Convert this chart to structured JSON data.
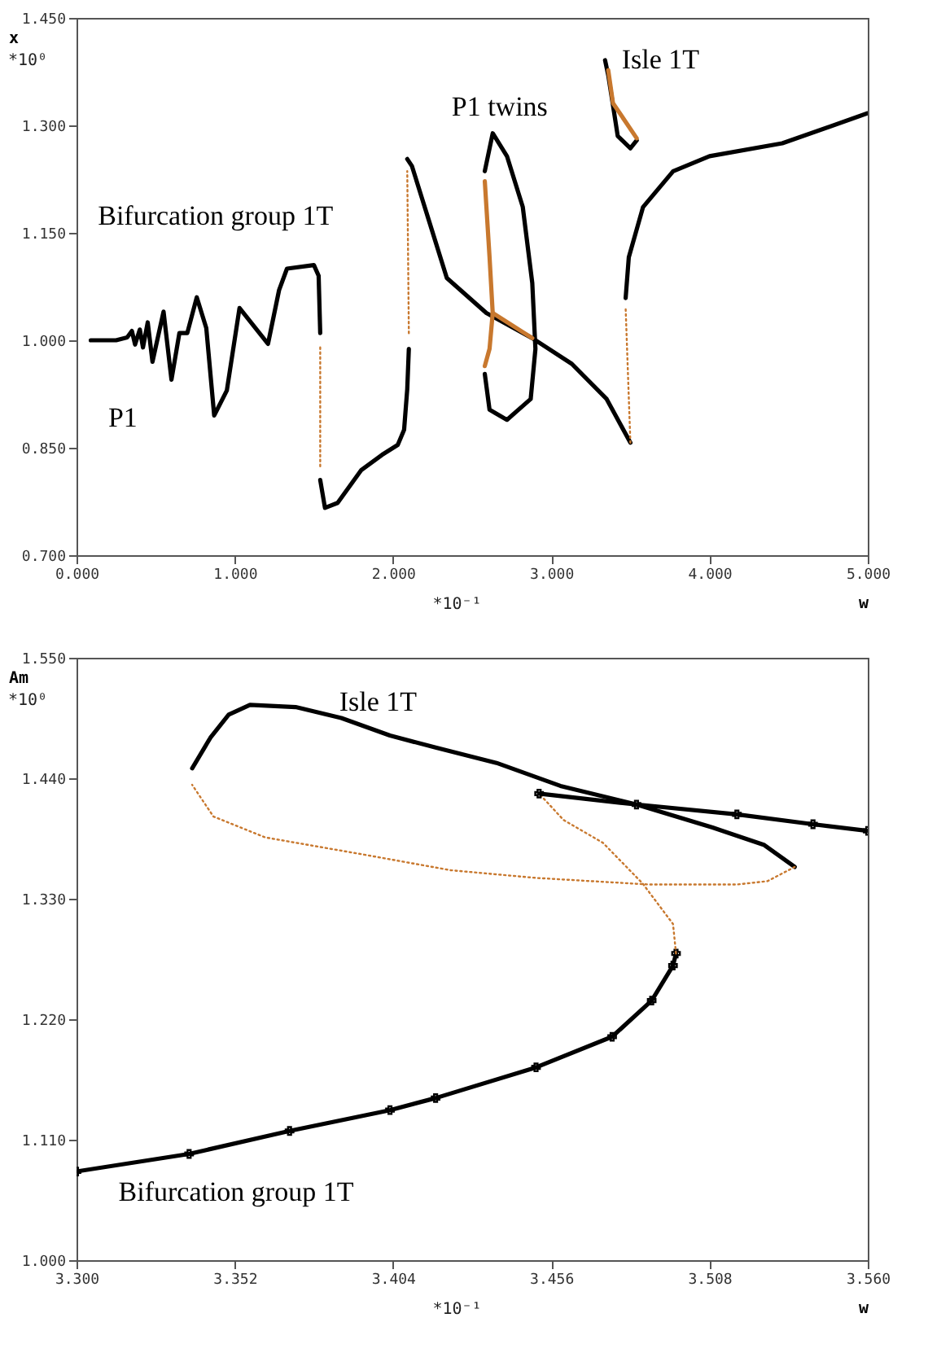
{
  "chart_data": [
    {
      "type": "line",
      "xlabel": "w",
      "ylabel": "x",
      "xlim": [
        0,
        5
      ],
      "xticks": [
        {
          "value": 0,
          "label": "0.000"
        },
        {
          "value": 1,
          "label": "1.000"
        },
        {
          "value": 2,
          "label": "2.000"
        },
        {
          "value": 3,
          "label": "3.000"
        },
        {
          "value": 4,
          "label": "4.000"
        },
        {
          "value": 5,
          "label": "5.000"
        }
      ],
      "ylim": [
        0.7,
        1.45
      ],
      "yticks": [
        {
          "value": 0.7,
          "label": "0.700"
        },
        {
          "value": 0.85,
          "label": "0.850"
        },
        {
          "value": 1.0,
          "label": "1.000"
        },
        {
          "value": 1.15,
          "label": "1.150"
        },
        {
          "value": 1.3,
          "label": "1.300"
        },
        {
          "value": 1.45,
          "label": "1.450"
        }
      ],
      "series": [
        {
          "color": "#000000",
          "x": [
            0.09,
            0.25,
            0.32,
            0.35,
            0.37,
            0.4,
            0.42,
            0.45,
            0.48,
            0.55,
            0.6,
            0.65,
            0.7,
            0.76,
            0.82,
            0.87,
            0.95,
            1.03,
            1.21,
            1.28,
            1.33,
            1.5,
            1.53,
            1.54
          ],
          "values": [
            1.0,
            1.0,
            1.004,
            1.013,
            0.994,
            1.015,
            0.99,
            1.025,
            0.97,
            1.04,
            0.945,
            1.01,
            1.01,
            1.06,
            1.017,
            0.895,
            0.93,
            1.045,
            0.995,
            1.07,
            1.1,
            1.105,
            1.09,
            1.01
          ]
        },
        {
          "color": "#c8782e",
          "line_style": "dotted",
          "x": [
            1.54,
            1.54
          ],
          "values": [
            0.99,
            0.82
          ]
        },
        {
          "color": "#000000",
          "x": [
            1.54,
            1.57,
            1.65,
            1.8,
            1.93,
            2.03,
            2.07,
            2.09,
            2.1
          ],
          "values": [
            0.805,
            0.766,
            0.773,
            0.819,
            0.84,
            0.854,
            0.875,
            0.932,
            0.988
          ]
        },
        {
          "color": "#c8782e",
          "line_style": "dotted",
          "x": [
            2.1,
            2.09
          ],
          "values": [
            1.01,
            1.236
          ]
        },
        {
          "color": "#000000",
          "x": [
            2.09,
            2.12,
            2.22,
            2.34,
            2.59,
            2.88,
            3.13,
            3.35,
            3.5
          ],
          "values": [
            1.253,
            1.243,
            1.172,
            1.087,
            1.038,
            1.003,
            0.967,
            0.918,
            0.857
          ]
        },
        {
          "color": "#c8782e",
          "line_style": "dotted",
          "x": [
            3.5,
            3.47
          ],
          "values": [
            0.857,
            1.045
          ]
        },
        {
          "color": "#000000",
          "x": [
            3.47,
            3.49,
            3.58,
            3.77,
            4.0,
            4.46,
            5.0
          ],
          "values": [
            1.059,
            1.116,
            1.186,
            1.236,
            1.257,
            1.275,
            1.317
          ]
        },
        {
          "color": "#000000",
          "x": [
            2.58,
            2.63,
            2.72,
            2.82,
            2.88,
            2.9,
            2.87,
            2.72,
            2.61,
            2.58
          ],
          "values": [
            1.236,
            1.289,
            1.257,
            1.186,
            1.08,
            0.988,
            0.918,
            0.889,
            0.903,
            0.953
          ]
        },
        {
          "color": "#c8782e",
          "x": [
            2.58,
            2.61,
            2.63,
            2.61,
            2.58
          ],
          "values": [
            0.964,
            0.988,
            1.038,
            1.116,
            1.222
          ]
        },
        {
          "color": "#c8782e",
          "x": [
            2.63,
            2.88
          ],
          "values": [
            1.038,
            1.003
          ]
        },
        {
          "color": "#000000",
          "x": [
            3.34,
            3.36,
            3.39,
            3.42,
            3.5,
            3.54
          ],
          "values": [
            1.391,
            1.37,
            1.328,
            1.285,
            1.268,
            1.279
          ]
        },
        {
          "color": "#c8782e",
          "x": [
            3.36,
            3.39,
            3.54
          ],
          "values": [
            1.377,
            1.331,
            1.282
          ]
        }
      ],
      "annotations": [
        "*10⁰",
        "*10⁻¹",
        "Bifurcation group 1T",
        "P1",
        "P1 twins",
        "Isle 1T"
      ]
    },
    {
      "type": "line",
      "xlabel": "w",
      "ylabel": "Am",
      "xlim": [
        3.3,
        3.56
      ],
      "xticks": [
        {
          "value": 3.3,
          "label": "3.300"
        },
        3.352,
        3.404,
        3.456,
        3.508,
        {
          "value": 3.56,
          "label": "3.560"
        }
      ],
      "ylim": [
        1.0,
        1.55
      ],
      "yticks": [
        {
          "value": 1.0,
          "label": "1.000"
        },
        {
          "value": 1.11,
          "label": "1.110"
        },
        {
          "value": 1.22,
          "label": "1.220"
        },
        {
          "value": 1.33,
          "label": "1.330"
        },
        {
          "value": 1.44,
          "label": "1.440"
        },
        {
          "value": 1.55,
          "label": "1.550"
        }
      ],
      "series": [
        {
          "color": "#000000",
          "x": [
            3.338,
            3.344,
            3.35,
            3.357,
            3.372,
            3.387,
            3.403,
            3.418,
            3.438,
            3.459,
            3.484,
            3.509,
            3.526,
            3.536
          ],
          "values": [
            1.449,
            1.477,
            1.498,
            1.507,
            1.505,
            1.495,
            1.479,
            1.468,
            1.454,
            1.433,
            1.416,
            1.395,
            1.379,
            1.359
          ]
        },
        {
          "color": "#c8782e",
          "line_style": "dotted",
          "x": [
            3.536,
            3.527,
            3.517,
            3.488,
            3.451,
            3.423,
            3.395,
            3.362,
            3.345,
            3.338
          ],
          "values": [
            1.359,
            1.346,
            1.343,
            1.343,
            1.349,
            1.356,
            1.37,
            1.386,
            1.405,
            1.434
          ]
        },
        {
          "color": "#000000",
          "marker": "cross",
          "x": [
            3.3,
            3.337,
            3.37,
            3.403,
            3.418,
            3.451,
            3.476,
            3.489,
            3.496,
            3.497
          ],
          "values": [
            1.081,
            1.097,
            1.118,
            1.137,
            1.148,
            1.176,
            1.204,
            1.237,
            1.269,
            1.28
          ]
        },
        {
          "color": "#c8782e",
          "line_style": "dotted",
          "x": [
            3.497,
            3.496,
            3.486,
            3.473,
            3.46,
            3.452
          ],
          "values": [
            1.28,
            1.307,
            1.344,
            1.381,
            1.402,
            1.426
          ]
        },
        {
          "color": "#000000",
          "marker": "cross",
          "x": [
            3.452,
            3.484,
            3.517,
            3.542,
            3.56
          ],
          "values": [
            1.426,
            1.416,
            1.407,
            1.398,
            1.392
          ]
        }
      ],
      "annotations": [
        "*10⁰",
        "*10⁻¹",
        "Isle 1T",
        "Bifurcation group 1T"
      ]
    }
  ]
}
